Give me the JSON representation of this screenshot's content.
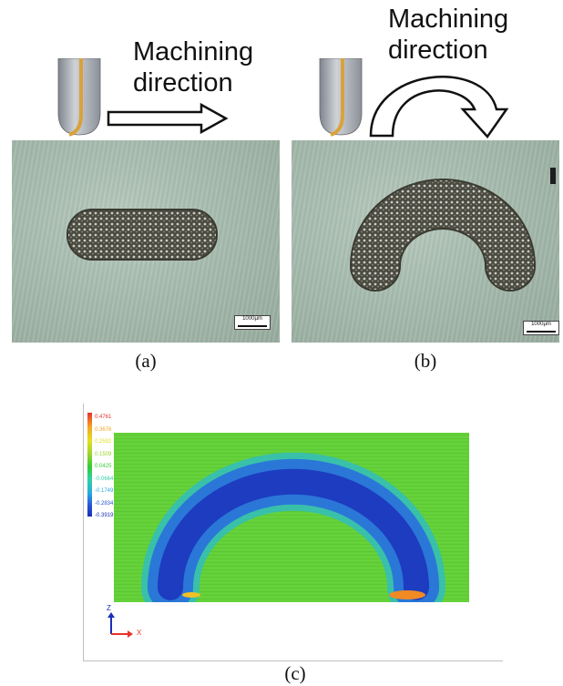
{
  "panel_a": {
    "direction_line1": "Machining",
    "direction_line2": "direction",
    "scale_label": "1000μm",
    "caption": "(a)"
  },
  "panel_b": {
    "direction_line1": "Machining",
    "direction_line2": "direction",
    "scale_label": "1000μm",
    "caption": "(b)"
  },
  "panel_c": {
    "legend_values": [
      "0.4761",
      "0.3676",
      "0.2592",
      "0.1509",
      "0.0425",
      "-0.0664",
      "-0.1749",
      "-0.2834",
      "-0.3919"
    ],
    "legend_colors": [
      "#e8322a",
      "#f5a623",
      "#e2e022",
      "#9bd42a",
      "#33cc33",
      "#2fd0a8",
      "#25a8e0",
      "#2a55d8",
      "#1a2fb8"
    ],
    "axis_z": "Z",
    "axis_x": "X",
    "caption": "(c)"
  }
}
